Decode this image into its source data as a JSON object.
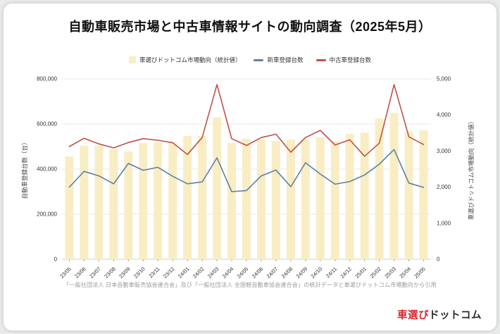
{
  "page": {
    "title": "自動車販売市場と中古車情報サイトの動向調査（2025年5月）",
    "footnote": "「一般社団法人 日本自動車販売協会連合会」及び「一般社団法人 全国軽自動車協会連合会」の統計データと車選びドットコム市場動向から引用",
    "logo": {
      "primary": "車選び",
      "secondary": "ドットコム"
    },
    "colors": {
      "logo_red": "#d9232e",
      "bar_fill": "#f9edc4",
      "new_car_line": "#5b82a6",
      "used_car_line": "#bf5149",
      "gridline": "#e9e9e9",
      "axis_baseline": "#cfcfcf"
    }
  },
  "legend": {
    "items": [
      {
        "label": "車選びドットコム市場動向（統計値）",
        "marker": "square",
        "color": "#f9edc4"
      },
      {
        "label": "新車登録台数",
        "marker": "line",
        "color": "#5b82a6"
      },
      {
        "label": "中古車登録台数",
        "marker": "line",
        "color": "#bf5149"
      }
    ]
  },
  "chart_data": {
    "type": "bar+line combo",
    "title": "自動車販売市場と中古車情報サイトの動向調査（2025年5月）",
    "legend_position": "top",
    "grid": {
      "horizontal": true,
      "follows": "left-axis"
    },
    "categories": [
      "23/05",
      "23/06",
      "23/07",
      "23/08",
      "23/09",
      "23/10",
      "23/11",
      "23/12",
      "24/01",
      "24/02",
      "24/03",
      "24/04",
      "24/05",
      "24/06",
      "24/07",
      "24/08",
      "24/09",
      "24/10",
      "24/11",
      "24/12",
      "25/01",
      "25/02",
      "25/03",
      "25/04",
      "25/05"
    ],
    "series": [
      {
        "name": "車選びドットコム市場動向（統計値）",
        "type": "bar",
        "axis": "right",
        "color": "#f9edc4",
        "values": [
          2850,
          3150,
          3150,
          3050,
          2990,
          3220,
          3240,
          3240,
          3420,
          3420,
          3930,
          3220,
          3340,
          3320,
          3280,
          3320,
          3320,
          3380,
          3280,
          3475,
          3510,
          3900,
          4060,
          3540,
          3575
        ]
      },
      {
        "name": "新車登録台数",
        "type": "line",
        "axis": "left",
        "color": "#5b82a6",
        "values": [
          320000,
          390000,
          370000,
          335000,
          425000,
          395000,
          408000,
          368000,
          335000,
          343000,
          450000,
          300000,
          305000,
          370000,
          396000,
          322000,
          428000,
          378000,
          333000,
          345000,
          374000,
          422000,
          487000,
          338000,
          319000
        ]
      },
      {
        "name": "中古車登録台数",
        "type": "line",
        "axis": "left",
        "color": "#bf5149",
        "values": [
          500000,
          537000,
          512000,
          494000,
          518000,
          535000,
          528000,
          517000,
          465000,
          540000,
          775000,
          535000,
          505000,
          540000,
          555000,
          475000,
          540000,
          572000,
          507000,
          530000,
          457000,
          515000,
          775000,
          543000,
          509000
        ]
      }
    ],
    "left_axis": {
      "label": "自動車登録台数（台）",
      "min": 0,
      "max": 800000,
      "tick_step": 200000,
      "ticks": [
        "0",
        "200,000",
        "400,000",
        "600,000",
        "800,000"
      ]
    },
    "right_axis": {
      "label": "車選びドットコム市場動向（統計値）",
      "min": 0,
      "max": 5000,
      "tick_step": 1000,
      "ticks": [
        "0",
        "1,000",
        "2,000",
        "3,000",
        "4,000",
        "5,000"
      ]
    }
  }
}
